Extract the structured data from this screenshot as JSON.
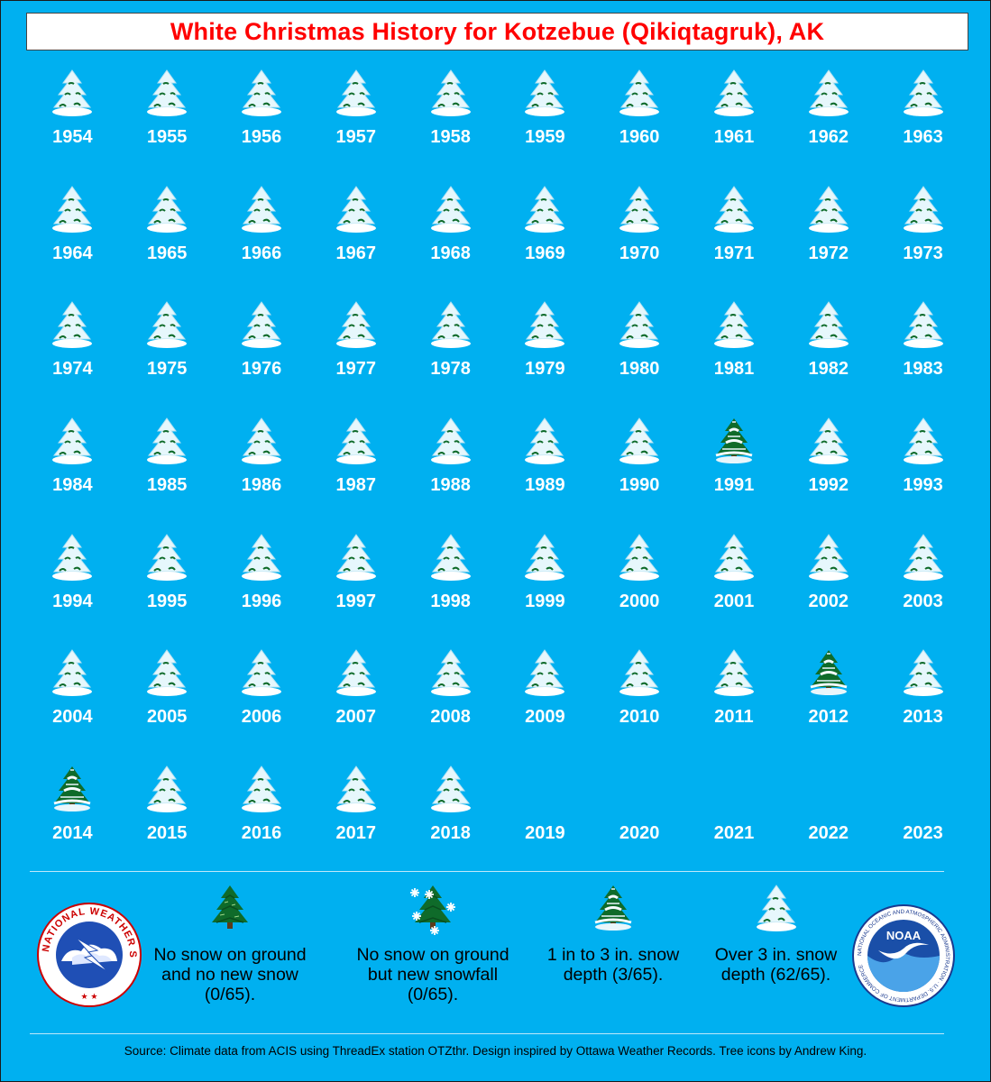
{
  "title": "White Christmas History for Kotzebue (Qikiqtagruk), AK",
  "colors": {
    "background": "#00b0f0",
    "title_text": "#ff0000",
    "year_text": "#ffffff"
  },
  "years": [
    {
      "year": "1954",
      "icon": "snowy-tree-icon"
    },
    {
      "year": "1955",
      "icon": "snowy-tree-icon"
    },
    {
      "year": "1956",
      "icon": "snowy-tree-icon"
    },
    {
      "year": "1957",
      "icon": "snowy-tree-icon"
    },
    {
      "year": "1958",
      "icon": "snowy-tree-icon"
    },
    {
      "year": "1959",
      "icon": "snowy-tree-icon"
    },
    {
      "year": "1960",
      "icon": "snowy-tree-icon"
    },
    {
      "year": "1961",
      "icon": "snowy-tree-icon"
    },
    {
      "year": "1962",
      "icon": "snowy-tree-icon"
    },
    {
      "year": "1963",
      "icon": "snowy-tree-icon"
    },
    {
      "year": "1964",
      "icon": "snowy-tree-icon"
    },
    {
      "year": "1965",
      "icon": "snowy-tree-icon"
    },
    {
      "year": "1966",
      "icon": "snowy-tree-icon"
    },
    {
      "year": "1967",
      "icon": "snowy-tree-icon"
    },
    {
      "year": "1968",
      "icon": "snowy-tree-icon"
    },
    {
      "year": "1969",
      "icon": "snowy-tree-icon"
    },
    {
      "year": "1970",
      "icon": "snowy-tree-icon"
    },
    {
      "year": "1971",
      "icon": "snowy-tree-icon"
    },
    {
      "year": "1972",
      "icon": "snowy-tree-icon"
    },
    {
      "year": "1973",
      "icon": "snowy-tree-icon"
    },
    {
      "year": "1974",
      "icon": "snowy-tree-icon"
    },
    {
      "year": "1975",
      "icon": "snowy-tree-icon"
    },
    {
      "year": "1976",
      "icon": "snowy-tree-icon"
    },
    {
      "year": "1977",
      "icon": "snowy-tree-icon"
    },
    {
      "year": "1978",
      "icon": "snowy-tree-icon"
    },
    {
      "year": "1979",
      "icon": "snowy-tree-icon"
    },
    {
      "year": "1980",
      "icon": "snowy-tree-icon"
    },
    {
      "year": "1981",
      "icon": "snowy-tree-icon"
    },
    {
      "year": "1982",
      "icon": "snowy-tree-icon"
    },
    {
      "year": "1983",
      "icon": "snowy-tree-icon"
    },
    {
      "year": "1984",
      "icon": "snowy-tree-icon"
    },
    {
      "year": "1985",
      "icon": "snowy-tree-icon"
    },
    {
      "year": "1986",
      "icon": "snowy-tree-icon"
    },
    {
      "year": "1987",
      "icon": "snowy-tree-icon"
    },
    {
      "year": "1988",
      "icon": "snowy-tree-icon"
    },
    {
      "year": "1989",
      "icon": "snowy-tree-icon"
    },
    {
      "year": "1990",
      "icon": "snowy-tree-icon"
    },
    {
      "year": "1991",
      "icon": "light-snow-tree-icon"
    },
    {
      "year": "1992",
      "icon": "snowy-tree-icon"
    },
    {
      "year": "1993",
      "icon": "snowy-tree-icon"
    },
    {
      "year": "1994",
      "icon": "snowy-tree-icon"
    },
    {
      "year": "1995",
      "icon": "snowy-tree-icon"
    },
    {
      "year": "1996",
      "icon": "snowy-tree-icon"
    },
    {
      "year": "1997",
      "icon": "snowy-tree-icon"
    },
    {
      "year": "1998",
      "icon": "snowy-tree-icon"
    },
    {
      "year": "1999",
      "icon": "snowy-tree-icon"
    },
    {
      "year": "2000",
      "icon": "snowy-tree-icon"
    },
    {
      "year": "2001",
      "icon": "snowy-tree-icon"
    },
    {
      "year": "2002",
      "icon": "snowy-tree-icon"
    },
    {
      "year": "2003",
      "icon": "snowy-tree-icon"
    },
    {
      "year": "2004",
      "icon": "snowy-tree-icon"
    },
    {
      "year": "2005",
      "icon": "snowy-tree-icon"
    },
    {
      "year": "2006",
      "icon": "snowy-tree-icon"
    },
    {
      "year": "2007",
      "icon": "snowy-tree-icon"
    },
    {
      "year": "2008",
      "icon": "snowy-tree-icon"
    },
    {
      "year": "2009",
      "icon": "snowy-tree-icon"
    },
    {
      "year": "2010",
      "icon": "snowy-tree-icon"
    },
    {
      "year": "2011",
      "icon": "snowy-tree-icon"
    },
    {
      "year": "2012",
      "icon": "light-snow-tree-icon"
    },
    {
      "year": "2013",
      "icon": "snowy-tree-icon"
    },
    {
      "year": "2014",
      "icon": "light-snow-tree-icon"
    },
    {
      "year": "2015",
      "icon": "snowy-tree-icon"
    },
    {
      "year": "2016",
      "icon": "snowy-tree-icon"
    },
    {
      "year": "2017",
      "icon": "snowy-tree-icon"
    },
    {
      "year": "2018",
      "icon": "snowy-tree-icon"
    },
    {
      "year": "2019",
      "icon": ""
    },
    {
      "year": "2020",
      "icon": ""
    },
    {
      "year": "2021",
      "icon": ""
    },
    {
      "year": "2022",
      "icon": ""
    },
    {
      "year": "2023",
      "icon": ""
    }
  ],
  "legend": [
    {
      "icon": "green-tree-icon",
      "text": "No snow on ground and no new snow (0/65)."
    },
    {
      "icon": "snowfall-tree-icon",
      "text": "No snow on ground but new snowfall (0/65)."
    },
    {
      "icon": "light-snow-tree-icon",
      "text": "1 in to 3 in. snow depth (3/65)."
    },
    {
      "icon": "snowy-tree-icon",
      "text": "Over 3 in. snow depth (62/65)."
    }
  ],
  "logos": {
    "nws": {
      "name": "nws-logo",
      "text": "NATIONAL WEATHER SERVICE"
    },
    "noaa": {
      "name": "noaa-logo",
      "center_text": "NOAA",
      "ring_text": "NATIONAL OCEANIC AND ATMOSPHERIC ADMINISTRATION · U.S. DEPARTMENT OF COMMERCE"
    }
  },
  "source": "Source: Climate data from ACIS using ThreadEx station OTZthr. Design inspired by Ottawa Weather Records. Tree icons by Andrew King."
}
